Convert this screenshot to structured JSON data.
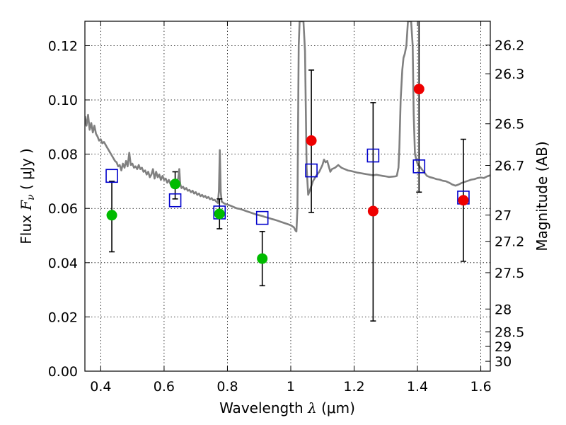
{
  "chart_data": {
    "type": "scatter",
    "xlabel": {
      "prefix": "Wavelength  ",
      "symbol": "λ",
      "unit": " (μm)"
    },
    "ylabel": {
      "prefix": "Flux  ",
      "symbol": "F",
      "subscript": "ν",
      "unit": "  ( μJy )"
    },
    "y2label": "Magnitude (AB)",
    "xlim": [
      0.35,
      1.63
    ],
    "ylim": [
      0.0,
      0.129
    ],
    "grid": true,
    "x_ticks": [
      {
        "v": 0.4,
        "label": "0.4"
      },
      {
        "v": 0.6,
        "label": "0.6"
      },
      {
        "v": 0.8,
        "label": "0.8"
      },
      {
        "v": 1.0,
        "label": "1"
      },
      {
        "v": 1.2,
        "label": "1.2"
      },
      {
        "v": 1.4,
        "label": "1.4"
      },
      {
        "v": 1.6,
        "label": "1.6"
      }
    ],
    "y_ticks": [
      {
        "v": 0.0,
        "label": "0.00"
      },
      {
        "v": 0.02,
        "label": "0.02"
      },
      {
        "v": 0.04,
        "label": "0.04"
      },
      {
        "v": 0.06,
        "label": "0.06"
      },
      {
        "v": 0.08,
        "label": "0.08"
      },
      {
        "v": 0.1,
        "label": "0.10"
      },
      {
        "v": 0.12,
        "label": "0.12"
      }
    ],
    "mag_ticks": [
      {
        "mag": 26.2,
        "label": "26.2"
      },
      {
        "mag": 26.3,
        "label": "26.3"
      },
      {
        "mag": 26.5,
        "label": "26.5"
      },
      {
        "mag": 26.7,
        "label": "26.7"
      },
      {
        "mag": 27.0,
        "label": "27"
      },
      {
        "mag": 27.2,
        "label": "27.2"
      },
      {
        "mag": 27.5,
        "label": "27.5"
      },
      {
        "mag": 28.0,
        "label": "28"
      },
      {
        "mag": 28.5,
        "label": "28.5"
      },
      {
        "mag": 29.0,
        "label": "29"
      },
      {
        "mag": 30.0,
        "label": "30"
      }
    ],
    "series": [
      {
        "kind": "spectrum",
        "color": "#808080",
        "points": [
          [
            0.35,
            0.094
          ],
          [
            0.355,
            0.0905
          ],
          [
            0.36,
            0.0945
          ],
          [
            0.365,
            0.089
          ],
          [
            0.37,
            0.0915
          ],
          [
            0.375,
            0.088
          ],
          [
            0.38,
            0.0905
          ],
          [
            0.385,
            0.0875
          ],
          [
            0.39,
            0.0865
          ],
          [
            0.395,
            0.085
          ],
          [
            0.4,
            0.0855
          ],
          [
            0.405,
            0.084
          ],
          [
            0.41,
            0.0845
          ],
          [
            0.415,
            0.0835
          ],
          [
            0.42,
            0.0825
          ],
          [
            0.425,
            0.0815
          ],
          [
            0.43,
            0.0805
          ],
          [
            0.435,
            0.0795
          ],
          [
            0.44,
            0.0785
          ],
          [
            0.445,
            0.0775
          ],
          [
            0.45,
            0.077
          ],
          [
            0.455,
            0.0755
          ],
          [
            0.46,
            0.076
          ],
          [
            0.465,
            0.074
          ],
          [
            0.47,
            0.0765
          ],
          [
            0.475,
            0.075
          ],
          [
            0.48,
            0.0775
          ],
          [
            0.485,
            0.0755
          ],
          [
            0.49,
            0.0805
          ],
          [
            0.495,
            0.076
          ],
          [
            0.5,
            0.0765
          ],
          [
            0.505,
            0.075
          ],
          [
            0.51,
            0.0755
          ],
          [
            0.515,
            0.0745
          ],
          [
            0.52,
            0.076
          ],
          [
            0.525,
            0.0745
          ],
          [
            0.53,
            0.075
          ],
          [
            0.535,
            0.0735
          ],
          [
            0.54,
            0.074
          ],
          [
            0.545,
            0.0725
          ],
          [
            0.55,
            0.0735
          ],
          [
            0.555,
            0.0715
          ],
          [
            0.56,
            0.0725
          ],
          [
            0.565,
            0.0745
          ],
          [
            0.57,
            0.071
          ],
          [
            0.575,
            0.0735
          ],
          [
            0.58,
            0.0715
          ],
          [
            0.585,
            0.0725
          ],
          [
            0.59,
            0.0705
          ],
          [
            0.595,
            0.072
          ],
          [
            0.6,
            0.0705
          ],
          [
            0.605,
            0.071
          ],
          [
            0.61,
            0.0695
          ],
          [
            0.615,
            0.0705
          ],
          [
            0.62,
            0.069
          ],
          [
            0.625,
            0.0695
          ],
          [
            0.63,
            0.0685
          ],
          [
            0.635,
            0.069
          ],
          [
            0.64,
            0.0685
          ],
          [
            0.645,
            0.0715
          ],
          [
            0.648,
            0.0745
          ],
          [
            0.651,
            0.069
          ],
          [
            0.655,
            0.0675
          ],
          [
            0.66,
            0.068
          ],
          [
            0.665,
            0.067
          ],
          [
            0.67,
            0.0675
          ],
          [
            0.675,
            0.0665
          ],
          [
            0.68,
            0.0668
          ],
          [
            0.685,
            0.066
          ],
          [
            0.69,
            0.0665
          ],
          [
            0.695,
            0.0655
          ],
          [
            0.7,
            0.066
          ],
          [
            0.705,
            0.065
          ],
          [
            0.71,
            0.0655
          ],
          [
            0.715,
            0.0645
          ],
          [
            0.72,
            0.065
          ],
          [
            0.725,
            0.0642
          ],
          [
            0.73,
            0.0646
          ],
          [
            0.735,
            0.0638
          ],
          [
            0.74,
            0.0642
          ],
          [
            0.745,
            0.0634
          ],
          [
            0.75,
            0.0638
          ],
          [
            0.755,
            0.063
          ],
          [
            0.76,
            0.0632
          ],
          [
            0.765,
            0.0625
          ],
          [
            0.77,
            0.062
          ],
          [
            0.773,
            0.0665
          ],
          [
            0.776,
            0.0815
          ],
          [
            0.779,
            0.066
          ],
          [
            0.782,
            0.0625
          ],
          [
            0.79,
            0.0618
          ],
          [
            0.8,
            0.0614
          ],
          [
            0.81,
            0.061
          ],
          [
            0.82,
            0.0605
          ],
          [
            0.83,
            0.06
          ],
          [
            0.84,
            0.0598
          ],
          [
            0.85,
            0.0594
          ],
          [
            0.86,
            0.059
          ],
          [
            0.87,
            0.0586
          ],
          [
            0.88,
            0.0582
          ],
          [
            0.89,
            0.0578
          ],
          [
            0.9,
            0.0575
          ],
          [
            0.91,
            0.0572
          ],
          [
            0.92,
            0.0568
          ],
          [
            0.93,
            0.0565
          ],
          [
            0.94,
            0.0561
          ],
          [
            0.95,
            0.0558
          ],
          [
            0.96,
            0.0554
          ],
          [
            0.97,
            0.055
          ],
          [
            0.98,
            0.0546
          ],
          [
            0.99,
            0.0542
          ],
          [
            1.0,
            0.0538
          ],
          [
            1.01,
            0.053
          ],
          [
            1.015,
            0.0518
          ],
          [
            1.018,
            0.0515
          ],
          [
            1.021,
            0.06
          ],
          [
            1.025,
            0.12
          ],
          [
            1.028,
            0.129
          ],
          [
            1.04,
            0.129
          ],
          [
            1.045,
            0.118
          ],
          [
            1.048,
            0.092
          ],
          [
            1.05,
            0.075
          ],
          [
            1.055,
            0.065
          ],
          [
            1.06,
            0.0665
          ],
          [
            1.07,
            0.07
          ],
          [
            1.08,
            0.072
          ],
          [
            1.09,
            0.0735
          ],
          [
            1.1,
            0.076
          ],
          [
            1.105,
            0.078
          ],
          [
            1.11,
            0.077
          ],
          [
            1.115,
            0.0775
          ],
          [
            1.12,
            0.0755
          ],
          [
            1.125,
            0.0735
          ],
          [
            1.13,
            0.0745
          ],
          [
            1.14,
            0.075
          ],
          [
            1.15,
            0.076
          ],
          [
            1.16,
            0.075
          ],
          [
            1.17,
            0.0745
          ],
          [
            1.18,
            0.074
          ],
          [
            1.19,
            0.0738
          ],
          [
            1.2,
            0.0735
          ],
          [
            1.21,
            0.0732
          ],
          [
            1.22,
            0.073
          ],
          [
            1.23,
            0.0728
          ],
          [
            1.24,
            0.0726
          ],
          [
            1.25,
            0.0724
          ],
          [
            1.26,
            0.0722
          ],
          [
            1.27,
            0.0724
          ],
          [
            1.28,
            0.0722
          ],
          [
            1.29,
            0.072
          ],
          [
            1.3,
            0.0718
          ],
          [
            1.31,
            0.0716
          ],
          [
            1.32,
            0.0717
          ],
          [
            1.33,
            0.0718
          ],
          [
            1.335,
            0.072
          ],
          [
            1.34,
            0.075
          ],
          [
            1.343,
            0.0825
          ],
          [
            1.347,
            0.1
          ],
          [
            1.352,
            0.111
          ],
          [
            1.356,
            0.1155
          ],
          [
            1.36,
            0.117
          ],
          [
            1.365,
            0.12
          ],
          [
            1.37,
            0.129
          ],
          [
            1.38,
            0.129
          ],
          [
            1.385,
            0.12
          ],
          [
            1.388,
            0.095
          ],
          [
            1.392,
            0.08
          ],
          [
            1.4,
            0.0765
          ],
          [
            1.41,
            0.075
          ],
          [
            1.42,
            0.0735
          ],
          [
            1.43,
            0.072
          ],
          [
            1.44,
            0.0715
          ],
          [
            1.45,
            0.0712
          ],
          [
            1.46,
            0.0708
          ],
          [
            1.47,
            0.0706
          ],
          [
            1.48,
            0.0702
          ],
          [
            1.49,
            0.07
          ],
          [
            1.5,
            0.0695
          ],
          [
            1.51,
            0.0688
          ],
          [
            1.52,
            0.0684
          ],
          [
            1.53,
            0.0688
          ],
          [
            1.54,
            0.0694
          ],
          [
            1.55,
            0.0698
          ],
          [
            1.56,
            0.0702
          ],
          [
            1.57,
            0.0706
          ],
          [
            1.58,
            0.0708
          ],
          [
            1.59,
            0.0712
          ],
          [
            1.6,
            0.0714
          ],
          [
            1.61,
            0.0712
          ],
          [
            1.62,
            0.0718
          ],
          [
            1.63,
            0.0722
          ]
        ]
      },
      {
        "kind": "model-bands",
        "color": "#0000cc",
        "points": [
          {
            "x": 0.435,
            "y": 0.072
          },
          {
            "x": 0.635,
            "y": 0.063
          },
          {
            "x": 0.775,
            "y": 0.0585
          },
          {
            "x": 0.91,
            "y": 0.0565
          },
          {
            "x": 1.065,
            "y": 0.074
          },
          {
            "x": 1.26,
            "y": 0.0795
          },
          {
            "x": 1.405,
            "y": 0.0755
          },
          {
            "x": 1.545,
            "y": 0.064
          }
        ]
      },
      {
        "kind": "observed-detections",
        "color": "#00bb00",
        "points": [
          {
            "x": 0.435,
            "y": 0.0575,
            "lo": 0.044,
            "hi": 0.07
          },
          {
            "x": 0.635,
            "y": 0.069,
            "lo": 0.0635,
            "hi": 0.0735
          },
          {
            "x": 0.775,
            "y": 0.058,
            "lo": 0.0525,
            "hi": 0.0635
          },
          {
            "x": 0.91,
            "y": 0.0415,
            "lo": 0.0315,
            "hi": 0.0515
          }
        ]
      },
      {
        "kind": "observed-ir",
        "color": "#ee0000",
        "points": [
          {
            "x": 1.065,
            "y": 0.085,
            "lo": 0.0585,
            "hi": 0.111
          },
          {
            "x": 1.26,
            "y": 0.059,
            "lo": 0.0185,
            "hi": 0.099
          },
          {
            "x": 1.405,
            "y": 0.104,
            "lo": 0.066,
            "hi": 0.129
          },
          {
            "x": 1.545,
            "y": 0.063,
            "lo": 0.0405,
            "hi": 0.0855
          }
        ]
      }
    ]
  }
}
